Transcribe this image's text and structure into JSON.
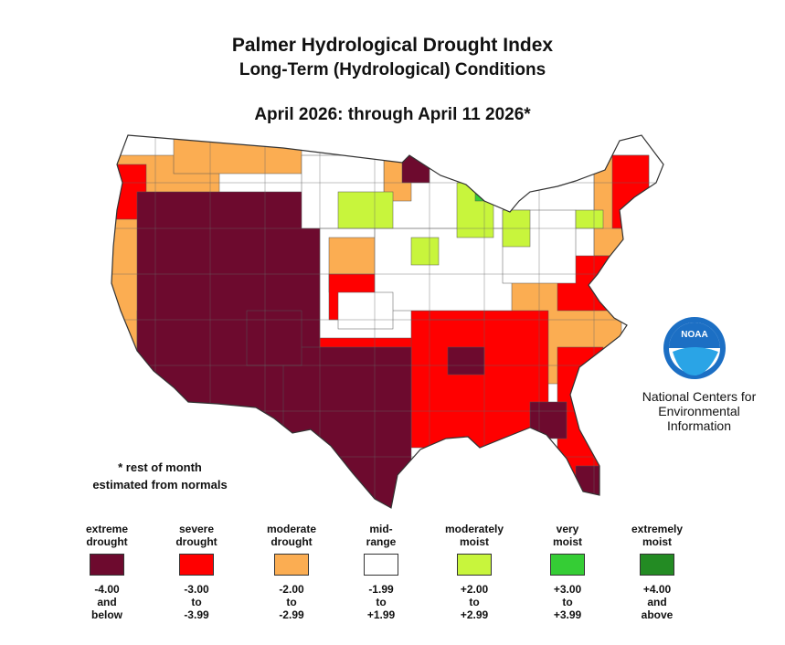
{
  "title": "Palmer Hydrological Drought Index",
  "subtitle": "Long-Term (Hydrological) Conditions",
  "period": "April 2026: through April 11 2026*",
  "note_line1": "* rest of month",
  "note_line2": "estimated from normals",
  "agency": {
    "line1": "National Centers for",
    "line2": "Environmental",
    "line3": "Information"
  },
  "logo_text": "NOAA",
  "colors": {
    "extreme_drought": "#6d0a2e",
    "severe_drought": "#ff0000",
    "moderate_drought": "#fbad52",
    "mid_range": "#ffffff",
    "moderately_moist": "#c8f53c",
    "very_moist": "#35cd35",
    "extremely_moist": "#238b23"
  },
  "legend": [
    {
      "label1": "extreme",
      "label2": "drought",
      "range1": "-4.00",
      "range2": "and",
      "range3": "below",
      "color": "#6d0a2e"
    },
    {
      "label1": "severe",
      "label2": "drought",
      "range1": "-3.00",
      "range2": "to",
      "range3": "-3.99",
      "color": "#ff0000"
    },
    {
      "label1": "moderate",
      "label2": "drought",
      "range1": "-2.00",
      "range2": "to",
      "range3": "-2.99",
      "color": "#fbad52"
    },
    {
      "label1": "mid-",
      "label2": "range",
      "range1": "-1.99",
      "range2": "to",
      "range3": "+1.99",
      "color": "#ffffff"
    },
    {
      "label1": "moderately",
      "label2": "moist",
      "range1": "+2.00",
      "range2": "to",
      "range3": "+2.99",
      "color": "#c8f53c"
    },
    {
      "label1": "very",
      "label2": "moist",
      "range1": "+3.00",
      "range2": "to",
      "range3": "+3.99",
      "color": "#35cd35"
    },
    {
      "label1": "extremely",
      "label2": "moist",
      "range1": "+4.00",
      "range2": "and",
      "range3": "above",
      "color": "#238b23"
    }
  ]
}
